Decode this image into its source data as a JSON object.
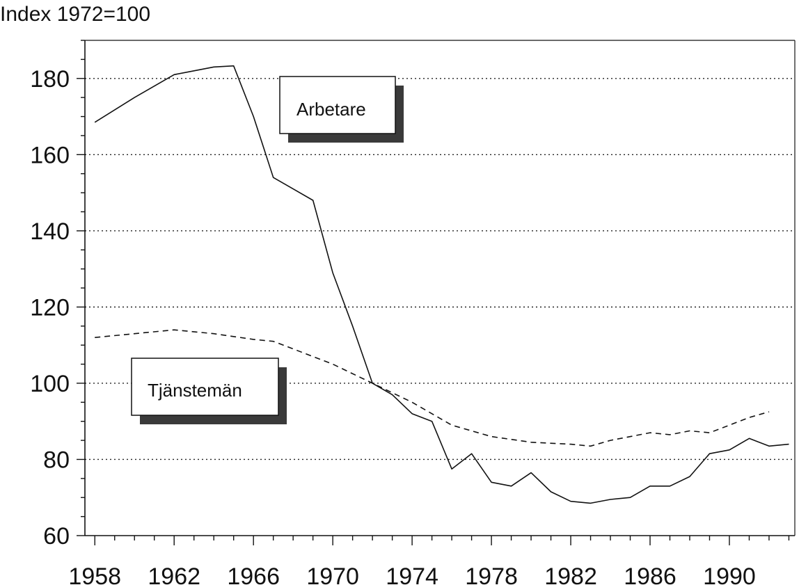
{
  "chart_data": {
    "type": "line",
    "ylabel": "Index 1972=100",
    "ylim": [
      60,
      190
    ],
    "xlim": [
      1957.5,
      1993.3
    ],
    "x_ticks": [
      1958,
      1962,
      1966,
      1970,
      1974,
      1978,
      1982,
      1986,
      1990
    ],
    "y_ticks": [
      60,
      80,
      100,
      120,
      140,
      160,
      180
    ],
    "grid": "horizontal dotted",
    "series": [
      {
        "name": "Arbetare",
        "style": "solid",
        "x": [
          1958,
          1960,
          1962,
          1963,
          1964,
          1965,
          1966,
          1967,
          1968,
          1969,
          1970,
          1971,
          1972,
          1973,
          1974,
          1975,
          1976,
          1977,
          1978,
          1979,
          1980,
          1981,
          1982,
          1983,
          1984,
          1985,
          1986,
          1987,
          1988,
          1989,
          1990,
          1991,
          1992,
          1993
        ],
        "y": [
          168.5,
          175,
          181,
          182,
          183,
          183.3,
          170,
          154,
          151,
          148,
          129,
          115,
          100,
          97,
          92,
          90,
          77.5,
          81.5,
          74,
          73,
          76.5,
          71.5,
          69,
          68.5,
          69.5,
          70,
          73,
          73,
          75.5,
          81.5,
          82.5,
          85.5,
          83.5,
          84
        ]
      },
      {
        "name": "Tjänstemän",
        "style": "dashed",
        "x": [
          1958,
          1960,
          1962,
          1964,
          1966,
          1967,
          1968,
          1970,
          1972,
          1974,
          1976,
          1978,
          1980,
          1982,
          1983,
          1984,
          1986,
          1987,
          1988,
          1989,
          1990,
          1991,
          1992
        ],
        "y": [
          112,
          113,
          114,
          113,
          111.5,
          111,
          109,
          105,
          100,
          95,
          89,
          86,
          84.5,
          84,
          83.5,
          85,
          87,
          86.5,
          87.5,
          87,
          89,
          91,
          92.5
        ]
      }
    ]
  }
}
